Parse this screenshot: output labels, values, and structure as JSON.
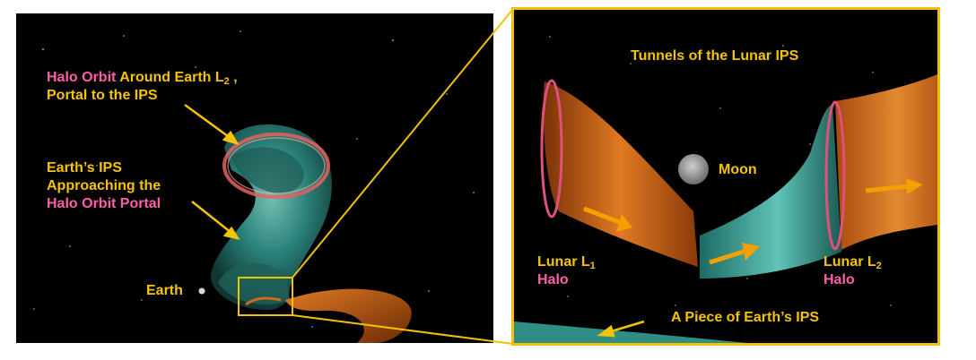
{
  "left": {
    "halo_label": {
      "part1": "Halo Orbit",
      "part2": " Around Earth  L",
      "sub": "2",
      "tail": " ,",
      "line2": "Portal to the IPS"
    },
    "earth_ips_label": {
      "line1": "Earth’s  IPS",
      "line2": "Approaching the",
      "line3": "Halo Orbit Portal"
    },
    "earth_label": "Earth"
  },
  "right": {
    "title": "Tunnels of the Lunar IPS",
    "moon_label": "Moon",
    "l1": {
      "main": "Lunar L",
      "sub": "1",
      "halo": "Halo"
    },
    "l2": {
      "main": "Lunar L",
      "sub": "2",
      "halo": "Halo"
    },
    "piece_label": "A Piece of Earth’s IPS"
  },
  "colors": {
    "yellow": "#f5c400",
    "pink": "#ff5fa8",
    "teal": "#2f8f86",
    "orange": "#c85a10"
  }
}
